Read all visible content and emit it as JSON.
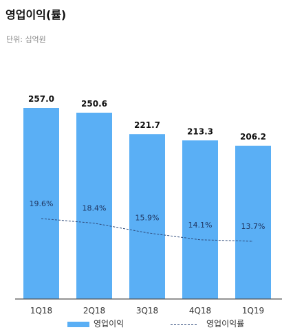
{
  "header": {
    "title": "영업이익(률)",
    "unit": "단위: 십억원"
  },
  "legend": {
    "bar_label": "영업이익",
    "line_label": "영업이익률"
  },
  "colors": {
    "bar": "#5aaff5",
    "line": "#2e4a7a",
    "axis": "#555555"
  },
  "chart_data": {
    "type": "bar",
    "categories": [
      "1Q18",
      "2Q18",
      "3Q18",
      "4Q18",
      "1Q19"
    ],
    "series": [
      {
        "name": "영업이익",
        "type": "bar",
        "values": [
          257.0,
          250.6,
          221.7,
          213.3,
          206.2
        ],
        "labels": [
          "257.0",
          "250.6",
          "221.7",
          "213.3",
          "206.2"
        ]
      },
      {
        "name": "영업이익률",
        "type": "line",
        "style": "dashed",
        "values": [
          19.6,
          18.4,
          15.9,
          14.1,
          13.7
        ],
        "labels": [
          "19.6%",
          "18.4%",
          "15.9%",
          "14.1%",
          "13.7%"
        ]
      }
    ],
    "title": "영업이익(률)",
    "xlabel": "",
    "ylabel": "",
    "legend_position": "bottom",
    "grid": false
  }
}
